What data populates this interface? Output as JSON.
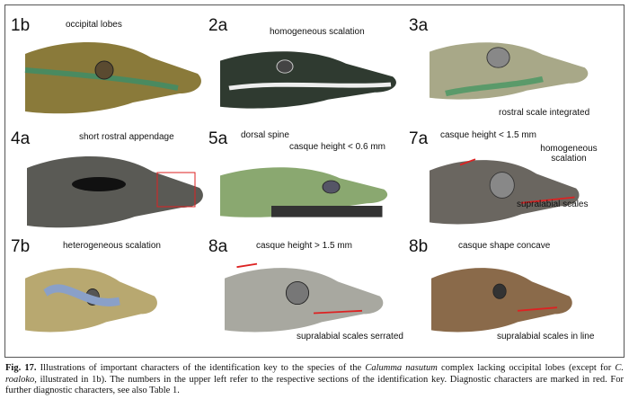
{
  "panels": [
    {
      "id": "1b",
      "annotations": [
        "occipital lobes"
      ]
    },
    {
      "id": "2a",
      "annotations": [
        "homogeneous scalation"
      ]
    },
    {
      "id": "3a",
      "annotations": [
        "rostral scale integrated"
      ]
    },
    {
      "id": "4a",
      "annotations": [
        "short rostral appendage"
      ]
    },
    {
      "id": "5a",
      "annotations": [
        "dorsal spine",
        "casque height < 0.6 mm"
      ]
    },
    {
      "id": "7a",
      "annotations": [
        "casque height < 1.5 mm",
        "homogeneous scalation",
        "supralabial scales"
      ]
    },
    {
      "id": "7b",
      "annotations": [
        "heterogeneous scalation"
      ]
    },
    {
      "id": "8a",
      "annotations": [
        "casque height > 1.5 mm",
        "supralabial scales serrated"
      ]
    },
    {
      "id": "8b",
      "annotations": [
        "casque shape concave",
        "supralabial scales in line"
      ]
    }
  ],
  "caption": {
    "label": "Fig. 17.",
    "parts": [
      " Illustrations of important characters of the identification key to the species of the ",
      "Calumma nasutum",
      " complex lacking occipital lobes (except for ",
      "C. roaloko",
      ", illustrated in 1b). The numbers in the upper left refer to the respective sections of the identification key. Diagnostic characters are marked in red. For further diagnostic characters, see also Table 1."
    ]
  }
}
